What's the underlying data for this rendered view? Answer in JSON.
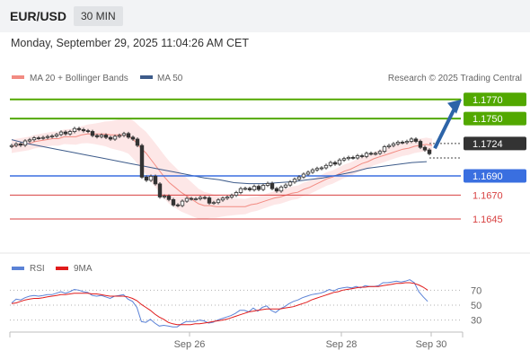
{
  "header": {
    "symbol": "EUR/USD",
    "timeframe": "30 MIN",
    "datetime": "Monday, September 29, 2025 11:04:26 AM CET"
  },
  "legend": {
    "ma20": "MA 20 + Bollinger Bands",
    "ma50": "MA 50",
    "credit": "Research © 2025 Trading Central",
    "rsi": "RSI",
    "ma9": "9MA"
  },
  "colors": {
    "resistance": "#52a800",
    "support_blue": "#3a6fe0",
    "support_red": "#d84040",
    "current": "#333333",
    "ma20": "#f28b82",
    "ma50": "#3d5b8a",
    "bands_fill": "#fde3e3",
    "arrow": "#2d64a8",
    "rsi_line": "#5b82d6",
    "ma9_line": "#e01b1b"
  },
  "chart_data": [
    {
      "type": "candlestick",
      "title": "",
      "xlabel": "",
      "ylabel": "",
      "x_ticks": [
        "Sep 26",
        "Sep 28",
        "Sep 30"
      ],
      "ylim": [
        1.163,
        1.1782
      ],
      "levels": [
        {
          "value": "1.1770",
          "kind": "resistance"
        },
        {
          "value": "1.1750",
          "kind": "resistance"
        },
        {
          "value": "1.1724",
          "kind": "current"
        },
        {
          "value": "1.1690",
          "kind": "support_blue"
        },
        {
          "value": "1.1670",
          "kind": "support_red"
        },
        {
          "value": "1.1645",
          "kind": "support_red"
        }
      ],
      "close": [
        1.17218,
        1.17235,
        1.17222,
        1.17266,
        1.17278,
        1.17298,
        1.17296,
        1.17302,
        1.17311,
        1.17318,
        1.17333,
        1.17359,
        1.1734,
        1.17364,
        1.17396,
        1.17385,
        1.17373,
        1.17365,
        1.17323,
        1.1731,
        1.17327,
        1.17303,
        1.17285,
        1.17314,
        1.17324,
        1.17343,
        1.17305,
        1.17285,
        1.17219,
        1.16888,
        1.16855,
        1.16897,
        1.16817,
        1.1668,
        1.16689,
        1.16653,
        1.16597,
        1.16591,
        1.16637,
        1.16665,
        1.1666,
        1.16661,
        1.16675,
        1.16671,
        1.16617,
        1.16622,
        1.16649,
        1.16668,
        1.16679,
        1.16698,
        1.16727,
        1.16767,
        1.1677,
        1.16755,
        1.16792,
        1.16759,
        1.16802,
        1.16822,
        1.16768,
        1.16743,
        1.16784,
        1.16805,
        1.16837,
        1.16866,
        1.16889,
        1.16919,
        1.16939,
        1.16963,
        1.16978,
        1.16985,
        1.1701,
        1.1704,
        1.17024,
        1.17067,
        1.17082,
        1.17094,
        1.17089,
        1.17112,
        1.17104,
        1.17137,
        1.17132,
        1.17136,
        1.17157,
        1.17205,
        1.17218,
        1.17236,
        1.17253,
        1.1725,
        1.17262,
        1.17286,
        1.17262,
        1.17199,
        1.17172,
        1.17133
      ],
      "ma20": [
        1.1721,
        1.1722,
        1.1723,
        1.1724,
        1.1726,
        1.1727,
        1.1728,
        1.1729,
        1.1729,
        1.1731,
        1.1731,
        1.1731,
        1.1733,
        1.1734,
        1.1734,
        1.1734,
        1.1734,
        1.1733,
        1.1733,
        1.1733,
        1.1732,
        1.1727,
        1.172,
        1.1714,
        1.1706,
        1.1698,
        1.169,
        1.1683,
        1.1678,
        1.1673,
        1.1669,
        1.1665,
        1.1661,
        1.1659,
        1.1659,
        1.1658,
        1.1658,
        1.1658,
        1.1658,
        1.1658,
        1.1658,
        1.166,
        1.1661,
        1.1663,
        1.1665,
        1.1667,
        1.1668,
        1.167,
        1.1672,
        1.1673,
        1.1676,
        1.1678,
        1.1681,
        1.1684,
        1.1687,
        1.1689,
        1.1692,
        1.1695,
        1.1697,
        1.17,
        1.1703,
        1.1705,
        1.1708,
        1.171,
        1.1712,
        1.1714,
        1.1716,
        1.1718,
        1.1719,
        1.1721,
        1.1722,
        1.1723,
        1.1722
      ],
      "ma50": [
        1.1728,
        1.1724,
        1.1721,
        1.1718,
        1.1715,
        1.1712,
        1.1709,
        1.1706,
        1.1703,
        1.17,
        1.1697,
        1.1694,
        1.1691,
        1.1688,
        1.1686,
        1.1683,
        1.1682,
        1.1682,
        1.1683,
        1.1684,
        1.1686,
        1.1688,
        1.1691,
        1.1694,
        1.1698,
        1.17,
        1.1702,
        1.1704,
        1.1705
      ]
    },
    {
      "type": "line",
      "title": "",
      "series": [
        {
          "name": "RSI"
        },
        {
          "name": "9MA"
        }
      ],
      "ylim": [
        20,
        80
      ],
      "y_ticks": [
        "70",
        "50",
        "30"
      ],
      "rsi": [
        53,
        58,
        57,
        60,
        62,
        63,
        62,
        63,
        64,
        64,
        66,
        68,
        66,
        68,
        71,
        70,
        68,
        67,
        63,
        62,
        63,
        61,
        59,
        62,
        63,
        64,
        58,
        55,
        47,
        28,
        27,
        31,
        26,
        22,
        23,
        22,
        21,
        21,
        25,
        28,
        28,
        28,
        30,
        29,
        26,
        27,
        30,
        32,
        34,
        36,
        39,
        43,
        43,
        41,
        46,
        42,
        47,
        49,
        43,
        40,
        45,
        48,
        52,
        55,
        57,
        60,
        62,
        64,
        65,
        66,
        68,
        71,
        69,
        72,
        73,
        74,
        73,
        75,
        73,
        76,
        75,
        75,
        76,
        80,
        80,
        81,
        82,
        81,
        82,
        84,
        80,
        68,
        61,
        55
      ],
      "ma9": [
        52,
        53,
        55,
        57,
        58,
        59,
        59,
        60,
        61,
        62,
        63,
        64,
        64,
        65,
        66,
        66,
        66,
        66,
        65,
        65,
        64,
        63,
        62,
        62,
        62,
        62,
        61,
        59,
        56,
        51,
        47,
        43,
        38,
        34,
        31,
        27,
        25,
        24,
        24,
        24,
        24,
        25,
        25,
        26,
        27,
        28,
        29,
        30,
        31,
        33,
        35,
        37,
        39,
        41,
        42,
        43,
        44,
        45,
        45,
        45,
        45,
        46,
        47,
        48,
        50,
        52,
        54,
        57,
        59,
        61,
        63,
        65,
        67,
        68,
        70,
        71,
        72,
        73,
        74,
        74,
        75,
        75,
        75,
        76,
        77,
        78,
        79,
        79,
        80,
        80,
        79,
        77,
        74,
        70
      ]
    }
  ]
}
